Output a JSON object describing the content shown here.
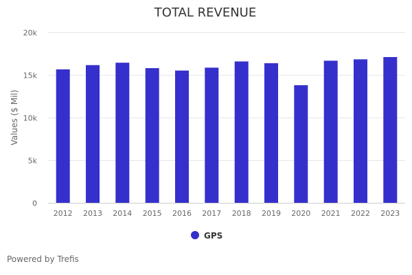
{
  "chart_data": {
    "type": "bar",
    "title": "TOTAL REVENUE",
    "xlabel": "",
    "ylabel": "Values ($ Mil)",
    "categories": [
      "2012",
      "2013",
      "2014",
      "2015",
      "2016",
      "2017",
      "2018",
      "2019",
      "2020",
      "2021",
      "2022",
      "2023"
    ],
    "series": [
      {
        "name": "GPS",
        "values": [
          15650,
          16150,
          16435,
          15800,
          15520,
          15855,
          16580,
          16380,
          13800,
          16670,
          16830,
          17100
        ]
      }
    ],
    "ylim": [
      0,
      20000
    ],
    "yticks": [
      0,
      5000,
      10000,
      15000,
      20000
    ],
    "ytick_labels": [
      "0",
      "5k",
      "10k",
      "15k",
      "20k"
    ],
    "grid": true,
    "legend_position": "bottom-center"
  },
  "colors": {
    "bar": "#3530cc",
    "grid": "#e6e6e6",
    "axis_text": "#666666",
    "title": "#333333"
  },
  "footer": {
    "text": "Powered by Trefis"
  }
}
